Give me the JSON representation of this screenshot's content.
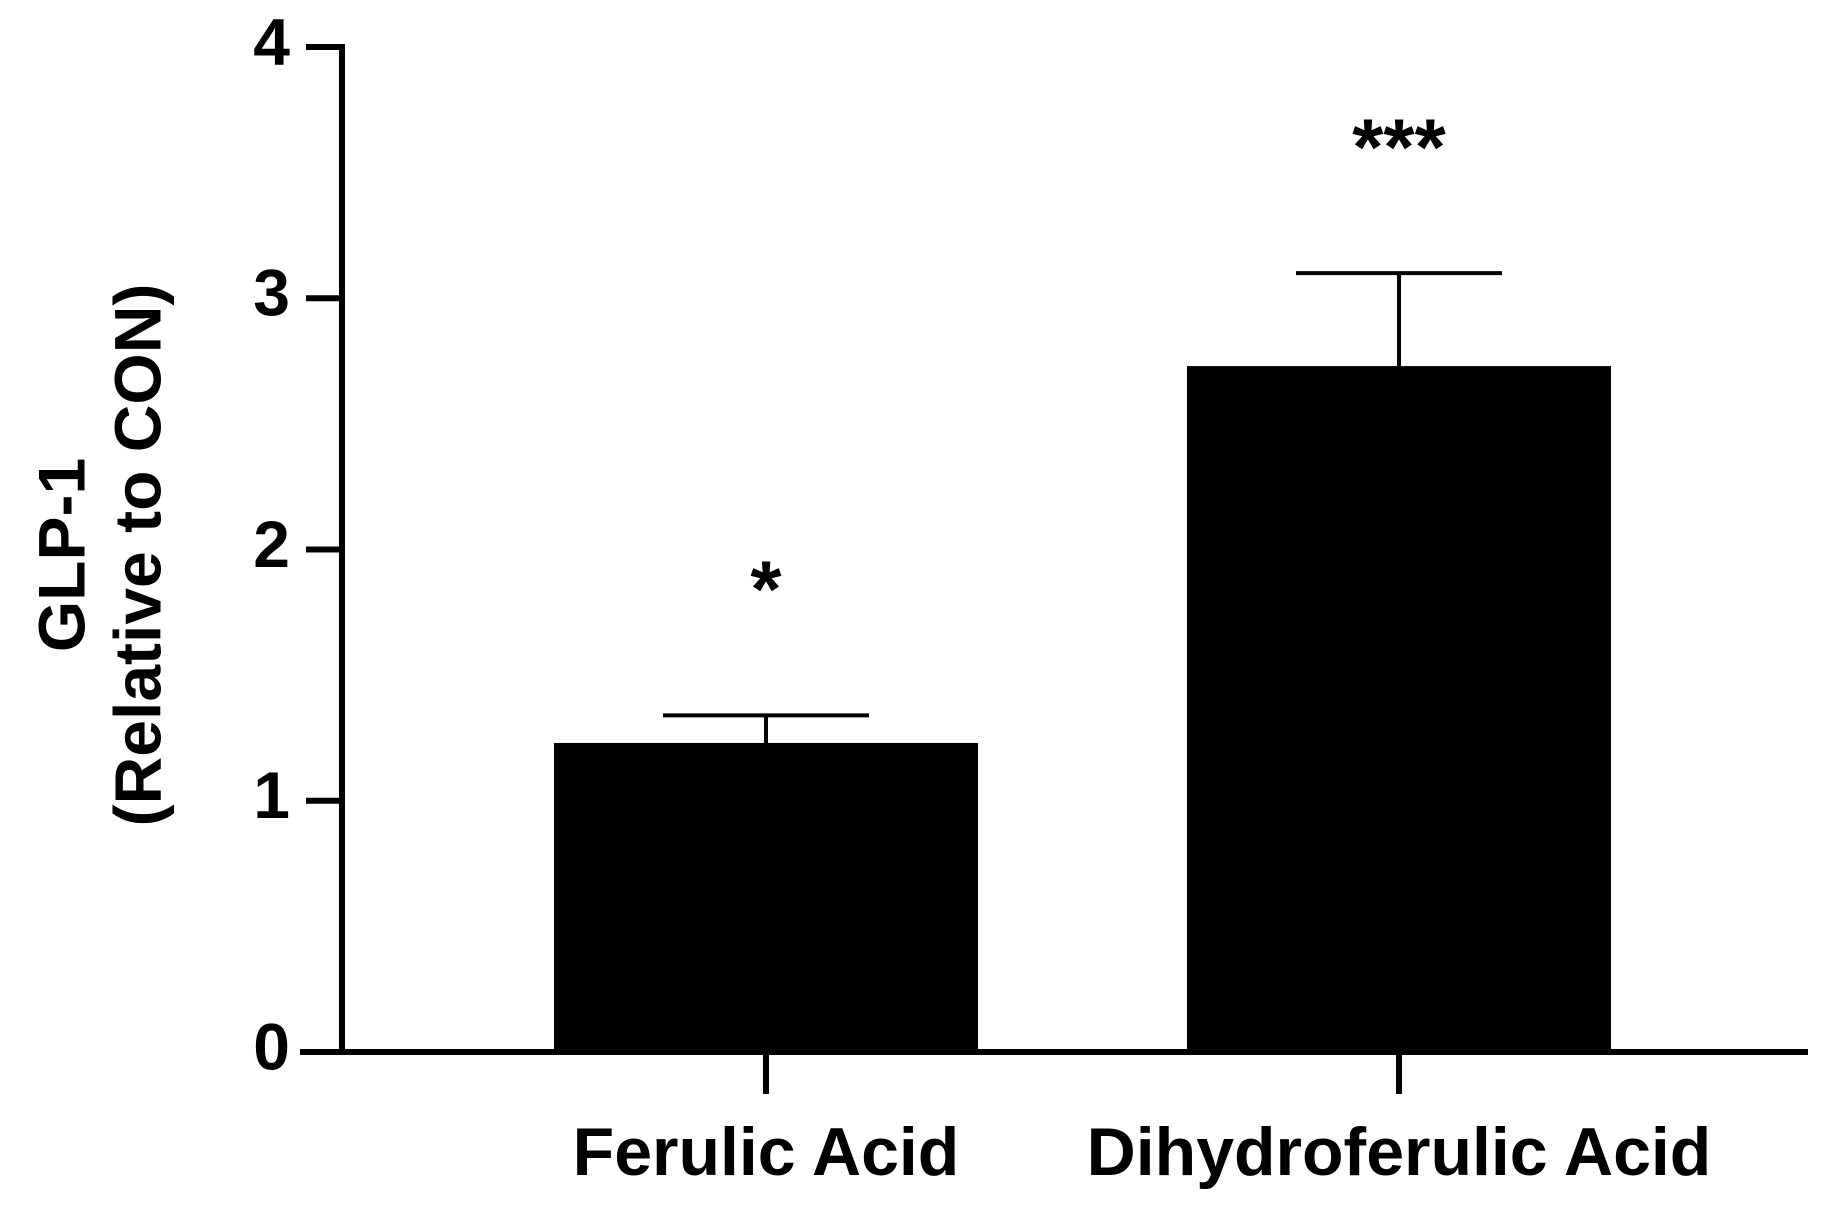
{
  "chart_data": {
    "type": "bar",
    "ylabel": [
      "GLP-1",
      "(Relative to CON)"
    ],
    "categories": [
      "Ferulic Acid",
      "Dihydroferulic Acid"
    ],
    "values": [
      1.23,
      2.73
    ],
    "errors": [
      0.11,
      0.37
    ],
    "annotations": [
      "*",
      "***"
    ],
    "color": "#000000",
    "ylim": [
      0,
      4
    ],
    "yticks": [
      0,
      1,
      2,
      3,
      4
    ],
    "grid": false
  }
}
